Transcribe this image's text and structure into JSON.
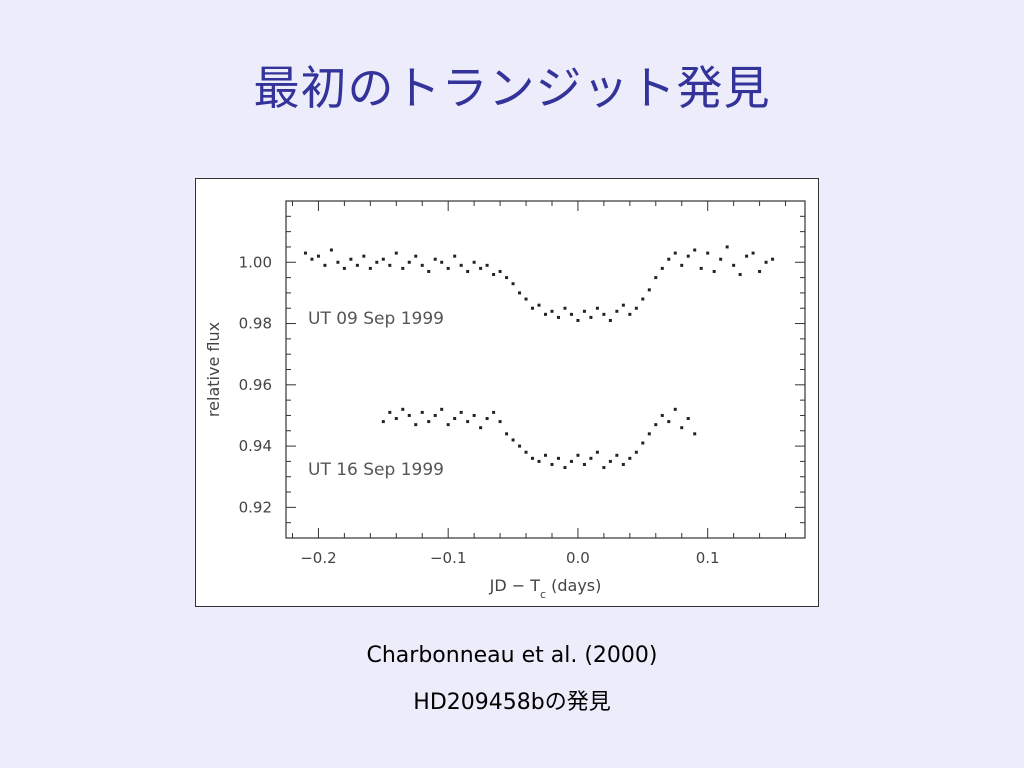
{
  "slide": {
    "title": "最初のトランジット発見",
    "citation": "Charbonneau et al. (2000)",
    "subject": "HD209458bの発見"
  },
  "colors": {
    "title": "#33339a",
    "background": "#ececfb",
    "points": "#222222"
  },
  "chart_data": {
    "type": "scatter",
    "xlabel": "JD − T",
    "xlabel_subscript": "c",
    "xlabel_suffix": " (days)",
    "ylabel": "relative flux",
    "xlim": [
      -0.225,
      0.175
    ],
    "ylim": [
      0.91,
      1.02
    ],
    "xticks": [
      -0.2,
      -0.1,
      0.0,
      0.1
    ],
    "xtick_labels": [
      "−0.2",
      "−0.1",
      "0.0",
      "0.1"
    ],
    "yticks": [
      0.92,
      0.94,
      0.96,
      0.98,
      1.0
    ],
    "ytick_labels": [
      "0.92",
      "0.94",
      "0.96",
      "0.98",
      "1.00"
    ],
    "annotations": [
      "UT 09 Sep 1999",
      "UT 16 Sep 1999"
    ],
    "series": [
      {
        "x": [
          -0.21,
          -0.205,
          -0.2,
          -0.195,
          -0.19,
          -0.185,
          -0.18,
          -0.175,
          -0.17,
          -0.165,
          -0.16,
          -0.155,
          -0.15,
          -0.145,
          -0.14,
          -0.135,
          -0.13,
          -0.125,
          -0.12,
          -0.115,
          -0.11,
          -0.105,
          -0.1,
          -0.095,
          -0.09,
          -0.085,
          -0.08,
          -0.075,
          -0.07,
          -0.065,
          -0.06,
          -0.055,
          -0.05,
          -0.045,
          -0.04,
          -0.035,
          -0.03,
          -0.025,
          -0.02,
          -0.015,
          -0.01,
          -0.005,
          0.0,
          0.005,
          0.01,
          0.015,
          0.02,
          0.025,
          0.03,
          0.035,
          0.04,
          0.045,
          0.05,
          0.055,
          0.06,
          0.065,
          0.07,
          0.075,
          0.08,
          0.085,
          0.09,
          0.095,
          0.1,
          0.105,
          0.11,
          0.115,
          0.12,
          0.125,
          0.13,
          0.135,
          0.14,
          0.145,
          0.15
        ],
        "y": [
          1.003,
          1.001,
          1.002,
          0.999,
          1.004,
          1.0,
          0.998,
          1.001,
          0.999,
          1.002,
          0.998,
          1.0,
          1.001,
          0.999,
          1.003,
          0.998,
          1.0,
          1.002,
          0.999,
          0.997,
          1.001,
          1.0,
          0.998,
          1.002,
          0.999,
          0.997,
          1.0,
          0.998,
          0.999,
          0.996,
          0.997,
          0.995,
          0.993,
          0.99,
          0.988,
          0.985,
          0.986,
          0.983,
          0.984,
          0.982,
          0.985,
          0.983,
          0.981,
          0.984,
          0.982,
          0.985,
          0.983,
          0.981,
          0.984,
          0.986,
          0.983,
          0.985,
          0.988,
          0.991,
          0.995,
          0.998,
          1.001,
          1.003,
          0.999,
          1.002,
          1.004,
          0.998,
          1.003,
          0.997,
          1.001,
          1.005,
          0.999,
          0.996,
          1.002,
          1.003,
          0.997,
          1.0,
          1.001
        ]
      },
      {
        "x": [
          -0.15,
          -0.145,
          -0.14,
          -0.135,
          -0.13,
          -0.125,
          -0.12,
          -0.115,
          -0.11,
          -0.105,
          -0.1,
          -0.095,
          -0.09,
          -0.085,
          -0.08,
          -0.075,
          -0.07,
          -0.065,
          -0.06,
          -0.055,
          -0.05,
          -0.045,
          -0.04,
          -0.035,
          -0.03,
          -0.025,
          -0.02,
          -0.015,
          -0.01,
          -0.005,
          0.0,
          0.005,
          0.01,
          0.015,
          0.02,
          0.025,
          0.03,
          0.035,
          0.04,
          0.045,
          0.05,
          0.055,
          0.06,
          0.065,
          0.07,
          0.075,
          0.08,
          0.085,
          0.09
        ],
        "y": [
          0.948,
          0.951,
          0.949,
          0.952,
          0.95,
          0.947,
          0.951,
          0.948,
          0.95,
          0.952,
          0.947,
          0.949,
          0.951,
          0.948,
          0.95,
          0.946,
          0.949,
          0.951,
          0.948,
          0.944,
          0.942,
          0.94,
          0.938,
          0.936,
          0.935,
          0.937,
          0.934,
          0.936,
          0.933,
          0.935,
          0.937,
          0.934,
          0.936,
          0.938,
          0.933,
          0.935,
          0.937,
          0.934,
          0.936,
          0.938,
          0.941,
          0.944,
          0.947,
          0.95,
          0.948,
          0.952,
          0.946,
          0.949,
          0.944
        ]
      }
    ]
  }
}
